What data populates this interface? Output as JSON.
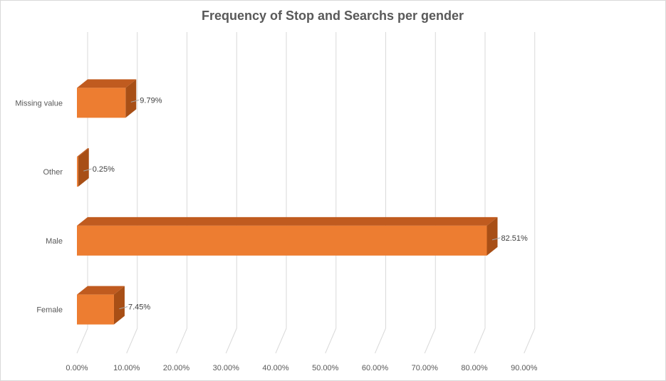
{
  "chart_data": {
    "type": "bar",
    "orientation": "horizontal",
    "style": "3d",
    "title": "Frequency of Stop and Searchs per gender",
    "categories": [
      "Female",
      "Male",
      "Other",
      "Missing value"
    ],
    "values": [
      7.45,
      82.51,
      0.25,
      9.79
    ],
    "data_labels": [
      "7.45%",
      "82.51%",
      "0.25%",
      "9.79%"
    ],
    "x_ticks": [
      "0.00%",
      "10.00%",
      "20.00%",
      "30.00%",
      "40.00%",
      "50.00%",
      "60.00%",
      "70.00%",
      "80.00%",
      "90.00%"
    ],
    "xlim": [
      0,
      90
    ],
    "grid": true,
    "legend": "none",
    "colors": {
      "bar_front": "#ED7D31",
      "bar_top": "#C05B1F",
      "bar_side": "#A84F16",
      "grid": "#d9d9d9",
      "text": "#595959"
    }
  }
}
